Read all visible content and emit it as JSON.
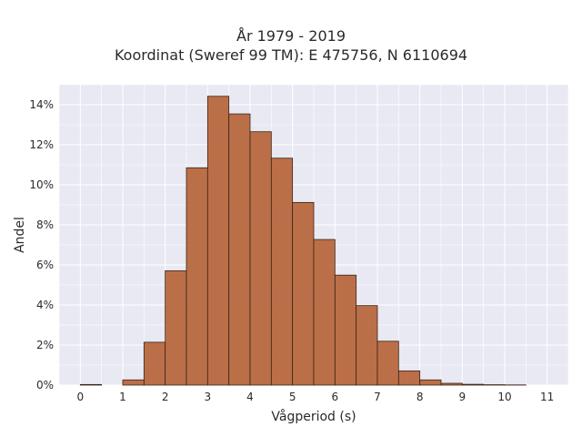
{
  "chart_data": {
    "type": "bar",
    "title": "År 1979 - 2019",
    "subtitle": "Koordinat (Sweref 99 TM): E 475756, N 6110694",
    "xlabel": "Vågperiod (s)",
    "ylabel": "Andel",
    "xlim": [
      -0.5,
      11.5
    ],
    "ylim": [
      0,
      0.15
    ],
    "x_ticks": [
      0,
      1,
      2,
      3,
      4,
      5,
      6,
      7,
      8,
      9,
      10,
      11
    ],
    "x_tick_labels": [
      "0",
      "1",
      "2",
      "3",
      "4",
      "5",
      "6",
      "7",
      "8",
      "9",
      "10",
      "11"
    ],
    "y_ticks": [
      0,
      0.02,
      0.04,
      0.06,
      0.08,
      0.1,
      0.12,
      0.14
    ],
    "y_tick_labels": [
      "0%",
      "2%",
      "4%",
      "6%",
      "8%",
      "10%",
      "12%",
      "14%"
    ],
    "bin_width": 0.5,
    "bin_starts": [
      0,
      0.5,
      1,
      1.5,
      2,
      2.5,
      3,
      3.5,
      4,
      4.5,
      5,
      5.5,
      6,
      6.5,
      7,
      7.5,
      8,
      8.5,
      9,
      9.5,
      10,
      10.5
    ],
    "values": [
      0.0003,
      0,
      0.0026,
      0.0214,
      0.0571,
      0.1085,
      0.1442,
      0.1354,
      0.1265,
      0.1133,
      0.0912,
      0.0727,
      0.0549,
      0.0397,
      0.0219,
      0.0071,
      0.0026,
      0.0009,
      0.0004,
      0.0002,
      0.0001,
      0
    ],
    "grid": true,
    "bar_color": "#b8683e",
    "bar_edge_color": "#3a2418",
    "background_color": "#e8e9f2",
    "grid_color": "#ffffff"
  }
}
